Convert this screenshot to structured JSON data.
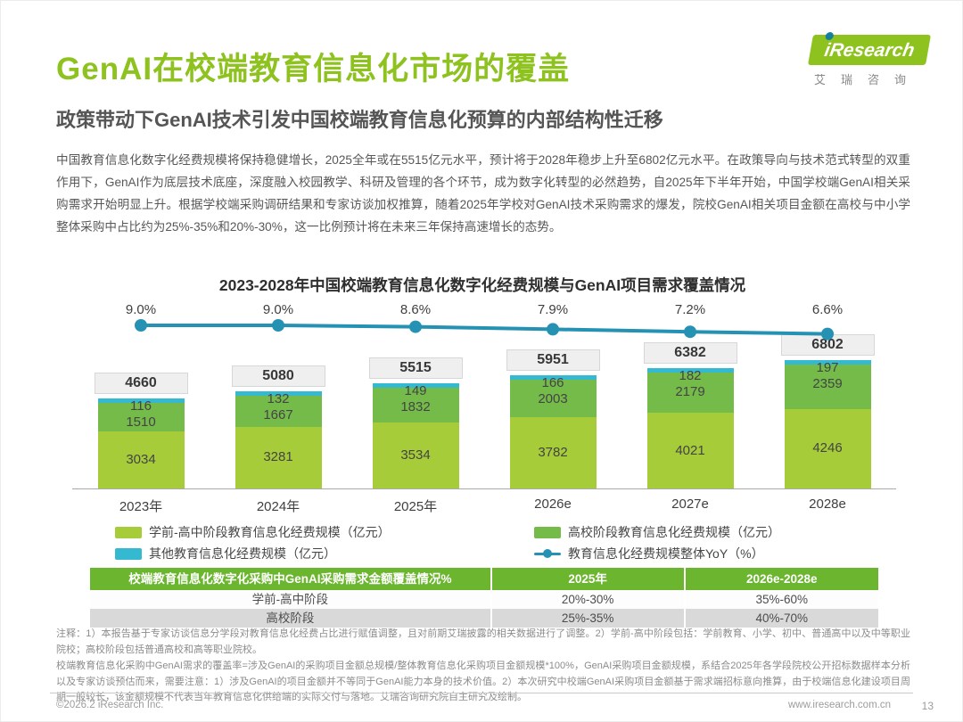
{
  "page": {
    "title": "GenAI在校端教育信息化市场的覆盖",
    "subtitle": "政策带动下GenAI技术引发中国校端教育信息化预算的内部结构性迁移",
    "body": "中国教育信息化数字化经费规模将保持稳健增长，2025全年或在5515亿元水平，预计将于2028年稳步上升至6802亿元水平。在政策导向与技术范式转型的双重作用下，GenAI作为底层技术底座，深度融入校园教学、科研及管理的各个环节，成为数字化转型的必然趋势，自2025年下半年开始，中国学校端GenAI相关采购需求开始明显上升。根据学校端采购调研结果和专家访谈加权推算，随着2025年学校对GenAI技术采购需求的爆发，院校GenAI相关项目金额在高校与中小学整体采购中占比约为25%-35%和20%-30%，这一比例预计将在未来三年保持高速增长的态势。",
    "footer_left": "©2026.2 iResearch Inc.",
    "footer_right": "www.iresearch.com.cn",
    "page_number": "13"
  },
  "logo": {
    "brand": "iResearch",
    "brand_cn": "艾瑞咨询",
    "green": "#8dc21f",
    "dot_color": "#16809c"
  },
  "chart_data": {
    "type": "bar",
    "subtype": "stacked-bar-with-line",
    "title": "2023-2028年中国校端教育信息化数字化经费规模与GenAI项目需求覆盖情况",
    "categories": [
      "2023年",
      "2024年",
      "2025年",
      "2026e",
      "2027e",
      "2028e"
    ],
    "series": [
      {
        "name": "学前-高中阶段教育信息化经费规模（亿元）",
        "color": "#a6cc3a",
        "values": [
          3034,
          3281,
          3534,
          3782,
          4021,
          4246
        ]
      },
      {
        "name": "高校阶段教育信息化经费规模（亿元）",
        "color": "#74bb4a",
        "values": [
          1510,
          1667,
          1832,
          2003,
          2179,
          2359
        ]
      },
      {
        "name": "其他教育信息化经费规模（亿元）",
        "color": "#35b9d0",
        "values": [
          116,
          132,
          149,
          166,
          182,
          197
        ]
      }
    ],
    "totals": [
      4660,
      5080,
      5515,
      5951,
      6382,
      6802
    ],
    "line_series": {
      "name": "教育信息化经费规模整体YoY（%）",
      "color": "#2592b4",
      "values": [
        9.0,
        9.0,
        8.6,
        7.9,
        7.2,
        6.6
      ],
      "labels": [
        "9.0%",
        "9.0%",
        "8.6%",
        "7.9%",
        "7.2%",
        "6.6%"
      ]
    },
    "grid": false,
    "legend_position": "bottom"
  },
  "table": {
    "header": [
      "校端教育信息化数字化采购中GenAI采购需求金额覆盖情况%",
      "2025年",
      "2026e-2028e"
    ],
    "rows": [
      [
        "学前-高中阶段",
        "20%-30%",
        "35%-60%"
      ],
      [
        "高校阶段",
        "25%-35%",
        "40%-70%"
      ]
    ],
    "header_bg": "#6cb52f"
  },
  "notes": [
    "注释：1）本报告基于专家访谈信息分学段对教育信息化经费占比进行赋值调整，且对前期艾瑞披露的相关数据进行了调整。2）学前-高中阶段包括：学前教育、小学、初中、普通高中以及中等职业院校；高校阶段包括普通高校和高等职业院校。",
    "校端教育信息化采购中GenAI需求的覆盖率=涉及GenAI的采购项目金额总规模/整体教育信息化采购项目金额规模*100%，GenAI采购项目金额规模，系结合2025年各学段院校公开招标数据样本分析以及专家访谈预估而来，需要注意：1）涉及GenAI的项目金额并不等同于GenAI能力本身的技术价值。2）本次研究中校端GenAI采购项目金额基于需求端招标意向推算，由于校端信息化建设项目周期一般较长，该金额规模不代表当年教育信息化供给端的实际交付与落地。艾瑞咨询研究院自主研究及绘制。"
  ]
}
